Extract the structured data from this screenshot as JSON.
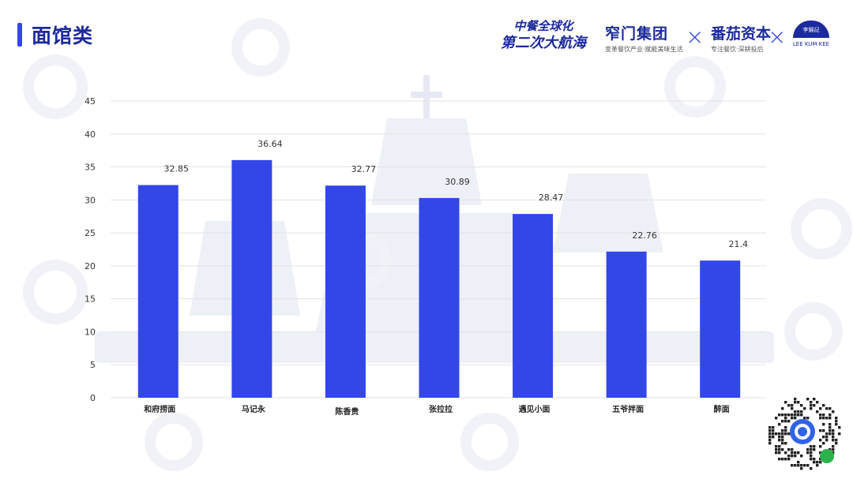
{
  "page": {
    "title": "面馆类"
  },
  "brand": {
    "event_line1": "中餐全球化",
    "event_line2": "第二次大航海",
    "partner1_name": "窄门集团",
    "partner1_slogan": "变革餐饮产业·赋能美味生活",
    "partner2_name": "番茄资本",
    "partner2_slogan": "专注餐饮·深耕投后",
    "partner3_cap": "李錦記",
    "partner3_name": "LEE KUM KEE",
    "cross": "×",
    "accent": "#3346e8",
    "dark": "#1b2a9c"
  },
  "chart_data": {
    "type": "bar",
    "categories": [
      "和府捞面",
      "马记永",
      "陈香贵",
      "张拉拉",
      "遇见小面",
      "五爷拌面",
      "醉面"
    ],
    "values": [
      32.85,
      36.64,
      32.77,
      30.89,
      28.47,
      22.76,
      21.4
    ],
    "value_labels": [
      "32.85",
      "36.64",
      "32.77",
      "30.89",
      "28.47",
      "22.76",
      "21.4"
    ],
    "title": "",
    "xlabel": "",
    "ylabel": "",
    "ylim": [
      0,
      45
    ],
    "yticks": [
      0,
      5,
      10,
      15,
      20,
      25,
      30,
      35,
      40,
      45
    ],
    "grid": true,
    "bar_color": "#3346e8"
  }
}
